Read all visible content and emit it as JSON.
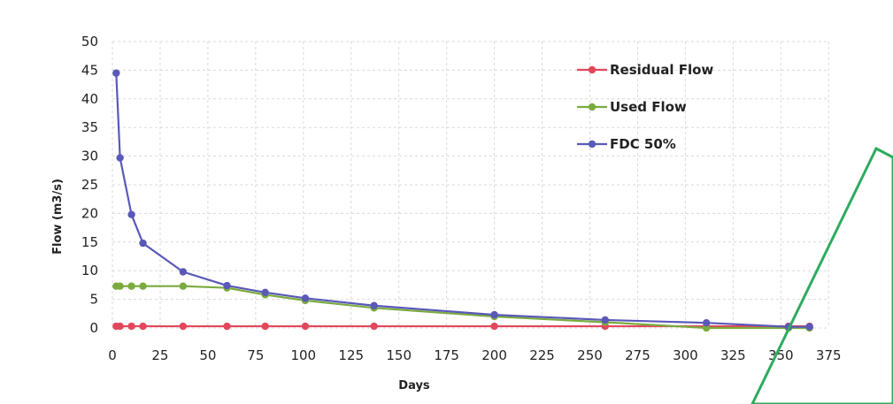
{
  "chart_data": {
    "type": "line",
    "xlabel": "Days",
    "ylabel": "Flow (m3/s)",
    "xlim": [
      0,
      375
    ],
    "ylim": [
      0,
      50
    ],
    "x_ticks": [
      "0",
      "25",
      "50",
      "75",
      "100",
      "125",
      "150",
      "175",
      "200",
      "225",
      "250",
      "275",
      "300",
      "325",
      "350",
      "375"
    ],
    "y_ticks": [
      "0",
      "5",
      "10",
      "15",
      "20",
      "25",
      "30",
      "35",
      "40",
      "45",
      "50"
    ],
    "grid": true,
    "legend_position": "top-right",
    "series": [
      {
        "name": "Residual Flow",
        "color": "#e2475c",
        "x": [
          2,
          4,
          10,
          16,
          37,
          60,
          80,
          101,
          137,
          200,
          258,
          311,
          354,
          365
        ],
        "y": [
          0.3,
          0.3,
          0.3,
          0.3,
          0.3,
          0.3,
          0.3,
          0.3,
          0.3,
          0.3,
          0.3,
          0.3,
          0.3,
          0.3
        ]
      },
      {
        "name": "Used Flow",
        "color": "#7aab3f",
        "x": [
          2,
          4,
          10,
          16,
          37,
          60,
          80,
          101,
          137,
          200,
          258,
          311,
          354,
          365
        ],
        "y": [
          7.3,
          7.3,
          7.3,
          7.3,
          7.3,
          7.0,
          5.8,
          4.8,
          3.5,
          2.0,
          1.0,
          0.0,
          0.0,
          0.0
        ]
      },
      {
        "name": "FDC 50%",
        "color": "#5a58b8",
        "x": [
          2,
          4,
          10,
          16,
          37,
          60,
          80,
          101,
          137,
          200,
          258,
          311,
          354,
          365
        ],
        "y": [
          44.5,
          29.7,
          19.8,
          14.8,
          9.8,
          7.4,
          6.2,
          5.2,
          3.9,
          2.3,
          1.4,
          0.9,
          0.2,
          0.2
        ]
      }
    ]
  },
  "watermark": {
    "shape": "stamp",
    "color": "#2eab5f"
  }
}
